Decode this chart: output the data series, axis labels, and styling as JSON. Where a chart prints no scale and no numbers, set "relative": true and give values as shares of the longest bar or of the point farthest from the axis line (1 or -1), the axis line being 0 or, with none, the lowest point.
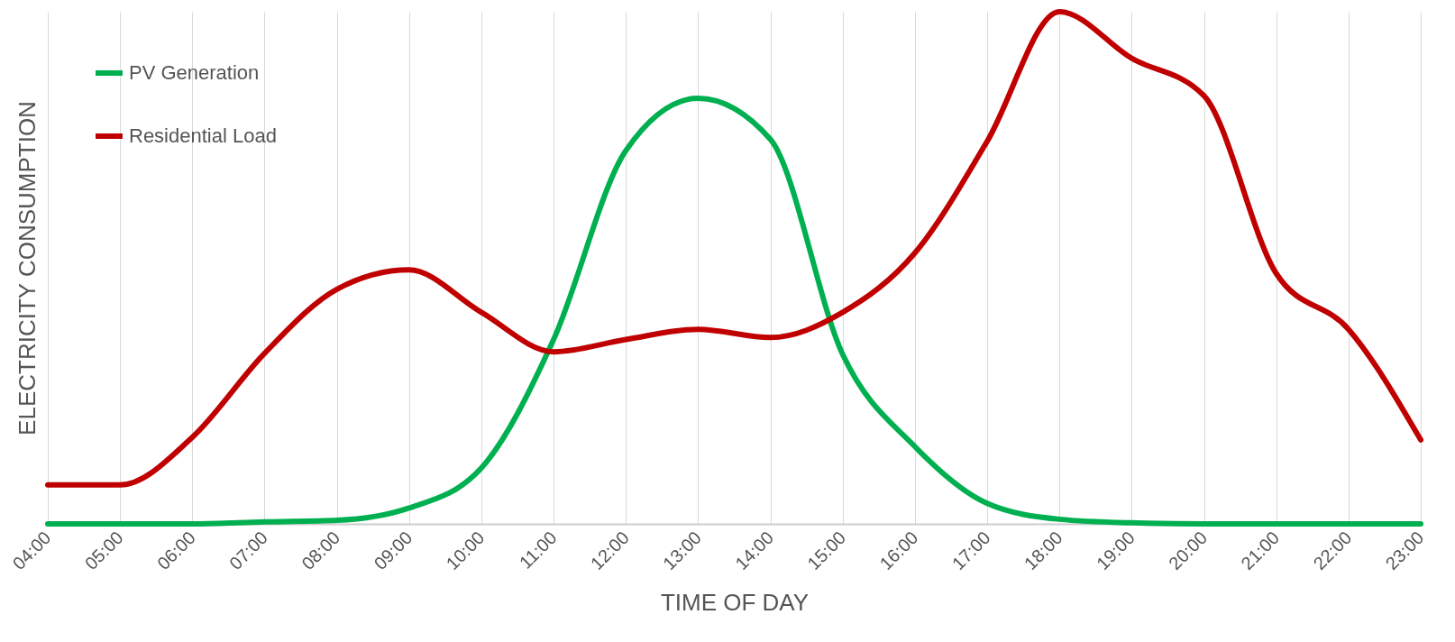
{
  "chart_data": {
    "type": "line",
    "relative": true,
    "xlabel": "TIME OF DAY",
    "ylabel": "ELECTRICITY CONSUMPTION",
    "categories": [
      "04:00",
      "05:00",
      "06:00",
      "07:00",
      "08:00",
      "09:00",
      "10:00",
      "11:00",
      "12:00",
      "13:00",
      "14:00",
      "15:00",
      "16:00",
      "17:00",
      "18:00",
      "19:00",
      "20:00",
      "21:00",
      "22:00",
      "23:00"
    ],
    "series": [
      {
        "name": "PV Generation",
        "color": "#00b050",
        "values": [
          0,
          0,
          0,
          0.004,
          0.007,
          0.031,
          0.109,
          0.36,
          0.729,
          0.831,
          0.751,
          0.331,
          0.151,
          0.04,
          0.009,
          0.002,
          0,
          0,
          0,
          0
        ]
      },
      {
        "name": "Residential Load",
        "color": "#c00000",
        "values": [
          0.076,
          0.076,
          0.169,
          0.333,
          0.458,
          0.496,
          0.413,
          0.336,
          0.36,
          0.38,
          0.364,
          0.413,
          0.529,
          0.747,
          1,
          0.909,
          0.836,
          0.489,
          0.38,
          0.164
        ]
      }
    ],
    "grid": "x",
    "legend": "top left",
    "marker": "none",
    "line_style": "solid"
  }
}
